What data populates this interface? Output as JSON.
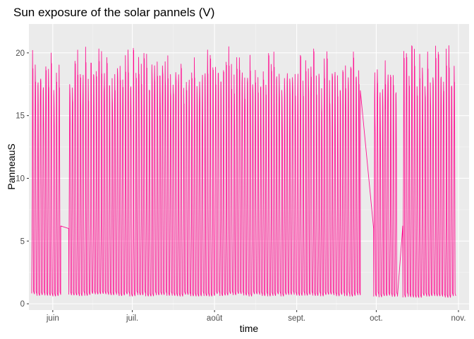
{
  "chart_data": {
    "type": "line",
    "title": "Sun exposure of the solar pannels (V)",
    "xlabel": "time",
    "ylabel": "PanneauS",
    "ylim": [
      -0.5,
      22.3
    ],
    "xlim": [
      "2023-05-23",
      "2023-11-05"
    ],
    "yticks": [
      0,
      5,
      10,
      15,
      20
    ],
    "xticks": [
      {
        "date": "2023-06-01",
        "label": "juin"
      },
      {
        "date": "2023-07-01",
        "label": "juil."
      },
      {
        "date": "2023-08-01",
        "label": "août"
      },
      {
        "date": "2023-09-01",
        "label": "sept."
      },
      {
        "date": "2023-10-01",
        "label": "oct."
      },
      {
        "date": "2023-11-01",
        "label": "nov."
      }
    ],
    "grid": true,
    "background": "#ebebeb",
    "line_color": "#ff1493",
    "series": [
      {
        "segments": [
          {
            "start": "2023-05-24",
            "end": "2023-06-04",
            "pattern": "daily",
            "peak": 20.2,
            "low": 0.6
          },
          {
            "start": "2023-06-04",
            "end": "2023-06-07",
            "pattern": "flat",
            "values": [
              6.2,
              6.0
            ]
          },
          {
            "start": "2023-06-07",
            "end": "2023-09-25",
            "pattern": "daily",
            "peak": 20.5,
            "low": 0.6
          },
          {
            "start": "2023-09-25",
            "end": "2023-09-30",
            "pattern": "ramp",
            "values": [
              17.0,
              6.0
            ]
          },
          {
            "start": "2023-09-30",
            "end": "2023-10-09",
            "pattern": "daily",
            "peak": 19.5,
            "low": 0.5
          },
          {
            "start": "2023-10-09",
            "end": "2023-10-11",
            "pattern": "ramp",
            "values": [
              0.6,
              6.2
            ]
          },
          {
            "start": "2023-10-11",
            "end": "2023-10-31",
            "pattern": "daily",
            "peak": 20.6,
            "low": 0.5
          }
        ]
      }
    ]
  }
}
